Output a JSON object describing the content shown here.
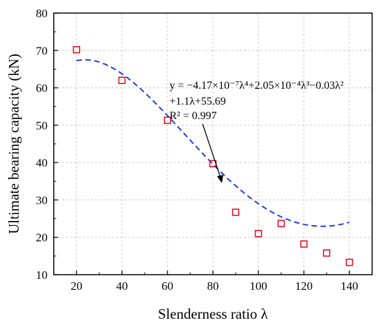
{
  "chart_data": {
    "type": "scatter",
    "xlabel": "Slenderness ratio λ",
    "ylabel": "Ultimate bearing capacity (kN)",
    "xlim": [
      10,
      150
    ],
    "ylim": [
      10,
      80
    ],
    "xticks": [
      20,
      40,
      60,
      80,
      100,
      120,
      140
    ],
    "yticks": [
      10,
      20,
      30,
      40,
      50,
      60,
      70,
      80
    ],
    "x_tick_labels": [
      "20",
      "40",
      "60",
      "80",
      "100",
      "120",
      "140"
    ],
    "y_tick_labels": [
      "10",
      "20",
      "30",
      "40",
      "50",
      "60",
      "70",
      "80"
    ],
    "grid": true,
    "series": [
      {
        "marker": "open-square",
        "color": "#e8001c",
        "x": [
          20,
          40,
          60,
          80,
          90,
          100,
          110,
          120,
          130,
          140
        ],
        "y": [
          70.2,
          62.0,
          51.3,
          39.7,
          26.7,
          21.0,
          23.7,
          18.2,
          15.8,
          13.3
        ]
      }
    ],
    "fit": {
      "style": "dashed",
      "color": "#1f3fd8",
      "x_range": [
        20,
        140
      ],
      "coefficients": {
        "a4": -4.17e-07,
        "a3": 0.000205,
        "a2": -0.03,
        "a1": 1.1,
        "a0": 55.69
      }
    },
    "annotation": {
      "line1": "y = −4.17×10⁻⁷λ⁴+2.05×10⁻⁴λ³−0.03λ²",
      "line2": "+1.1λ+55.69",
      "line3": "R² = 0.997"
    }
  }
}
